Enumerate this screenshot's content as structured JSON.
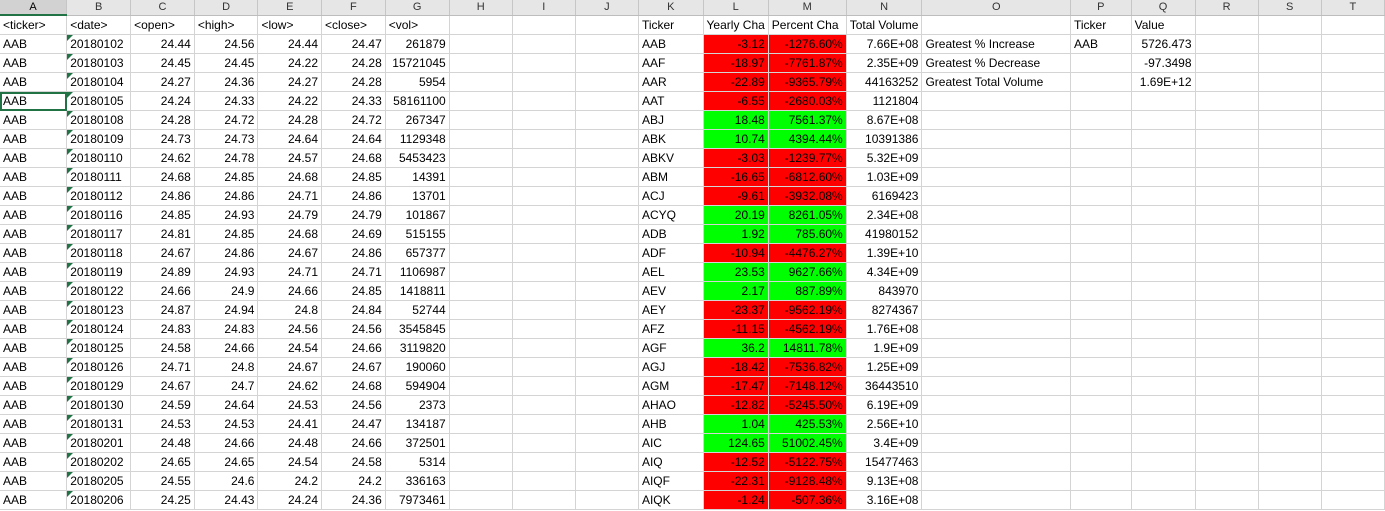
{
  "columns": [
    "A",
    "B",
    "C",
    "D",
    "E",
    "F",
    "G",
    "H",
    "I",
    "J",
    "K",
    "L",
    "M",
    "N",
    "O",
    "P",
    "Q",
    "R",
    "S",
    "T"
  ],
  "active_column": "A",
  "stock_header": [
    "<ticker>",
    "<date>",
    "<open>",
    "<high>",
    "<low>",
    "<close>",
    "<vol>"
  ],
  "stock_rows": [
    [
      "AAB",
      "20180102",
      "24.44",
      "24.56",
      "24.44",
      "24.47",
      "261879"
    ],
    [
      "AAB",
      "20180103",
      "24.45",
      "24.45",
      "24.22",
      "24.28",
      "15721045"
    ],
    [
      "AAB",
      "20180104",
      "24.27",
      "24.36",
      "24.27",
      "24.28",
      "5954"
    ],
    [
      "AAB",
      "20180105",
      "24.24",
      "24.33",
      "24.22",
      "24.33",
      "58161100"
    ],
    [
      "AAB",
      "20180108",
      "24.28",
      "24.72",
      "24.28",
      "24.72",
      "267347"
    ],
    [
      "AAB",
      "20180109",
      "24.73",
      "24.73",
      "24.64",
      "24.64",
      "1129348"
    ],
    [
      "AAB",
      "20180110",
      "24.62",
      "24.78",
      "24.57",
      "24.68",
      "5453423"
    ],
    [
      "AAB",
      "20180111",
      "24.68",
      "24.85",
      "24.68",
      "24.85",
      "14391"
    ],
    [
      "AAB",
      "20180112",
      "24.86",
      "24.86",
      "24.71",
      "24.86",
      "13701"
    ],
    [
      "AAB",
      "20180116",
      "24.85",
      "24.93",
      "24.79",
      "24.79",
      "101867"
    ],
    [
      "AAB",
      "20180117",
      "24.81",
      "24.85",
      "24.68",
      "24.69",
      "515155"
    ],
    [
      "AAB",
      "20180118",
      "24.67",
      "24.86",
      "24.67",
      "24.86",
      "657377"
    ],
    [
      "AAB",
      "20180119",
      "24.89",
      "24.93",
      "24.71",
      "24.71",
      "1106987"
    ],
    [
      "AAB",
      "20180122",
      "24.66",
      "24.9",
      "24.66",
      "24.85",
      "1418811"
    ],
    [
      "AAB",
      "20180123",
      "24.87",
      "24.94",
      "24.8",
      "24.84",
      "52744"
    ],
    [
      "AAB",
      "20180124",
      "24.83",
      "24.83",
      "24.56",
      "24.56",
      "3545845"
    ],
    [
      "AAB",
      "20180125",
      "24.58",
      "24.66",
      "24.54",
      "24.66",
      "3119820"
    ],
    [
      "AAB",
      "20180126",
      "24.71",
      "24.8",
      "24.67",
      "24.67",
      "190060"
    ],
    [
      "AAB",
      "20180129",
      "24.67",
      "24.7",
      "24.62",
      "24.68",
      "594904"
    ],
    [
      "AAB",
      "20180130",
      "24.59",
      "24.64",
      "24.53",
      "24.56",
      "2373"
    ],
    [
      "AAB",
      "20180131",
      "24.53",
      "24.53",
      "24.41",
      "24.47",
      "134187"
    ],
    [
      "AAB",
      "20180201",
      "24.48",
      "24.66",
      "24.48",
      "24.66",
      "372501"
    ],
    [
      "AAB",
      "20180202",
      "24.65",
      "24.65",
      "24.54",
      "24.58",
      "5314"
    ],
    [
      "AAB",
      "20180205",
      "24.55",
      "24.6",
      "24.2",
      "24.2",
      "336163"
    ],
    [
      "AAB",
      "20180206",
      "24.25",
      "24.43",
      "24.24",
      "24.36",
      "7973461"
    ]
  ],
  "summary_header": [
    "Ticker",
    "Yearly Cha",
    "Percent Cha",
    "Total Volume"
  ],
  "summary_rows": [
    {
      "ticker": "AAB",
      "change": "-3.12",
      "percent": "-1276.60%",
      "volume": "7.66E+08",
      "status": "red"
    },
    {
      "ticker": "AAF",
      "change": "-18.97",
      "percent": "-7761.87%",
      "volume": "2.35E+09",
      "status": "red"
    },
    {
      "ticker": "AAR",
      "change": "-22.89",
      "percent": "-9365.79%",
      "volume": "44163252",
      "status": "red"
    },
    {
      "ticker": "AAT",
      "change": "-6.55",
      "percent": "-2680.03%",
      "volume": "1121804",
      "status": "red"
    },
    {
      "ticker": "ABJ",
      "change": "18.48",
      "percent": "7561.37%",
      "volume": "8.67E+08",
      "status": "green"
    },
    {
      "ticker": "ABK",
      "change": "10.74",
      "percent": "4394.44%",
      "volume": "10391386",
      "status": "green"
    },
    {
      "ticker": "ABKV",
      "change": "-3.03",
      "percent": "-1239.77%",
      "volume": "5.32E+09",
      "status": "red"
    },
    {
      "ticker": "ABM",
      "change": "-16.65",
      "percent": "-6812.60%",
      "volume": "1.03E+09",
      "status": "red"
    },
    {
      "ticker": "ACJ",
      "change": "-9.61",
      "percent": "-3932.08%",
      "volume": "6169423",
      "status": "red"
    },
    {
      "ticker": "ACYQ",
      "change": "20.19",
      "percent": "8261.05%",
      "volume": "2.34E+08",
      "status": "green"
    },
    {
      "ticker": "ADB",
      "change": "1.92",
      "percent": "785.60%",
      "volume": "41980152",
      "status": "green"
    },
    {
      "ticker": "ADF",
      "change": "-10.94",
      "percent": "-4476.27%",
      "volume": "1.39E+10",
      "status": "red"
    },
    {
      "ticker": "AEL",
      "change": "23.53",
      "percent": "9627.66%",
      "volume": "4.34E+09",
      "status": "green"
    },
    {
      "ticker": "AEV",
      "change": "2.17",
      "percent": "887.89%",
      "volume": "843970",
      "status": "green"
    },
    {
      "ticker": "AEY",
      "change": "-23.37",
      "percent": "-9562.19%",
      "volume": "8274367",
      "status": "red"
    },
    {
      "ticker": "AFZ",
      "change": "-11.15",
      "percent": "-4562.19%",
      "volume": "1.76E+08",
      "status": "red"
    },
    {
      "ticker": "AGF",
      "change": "36.2",
      "percent": "14811.78%",
      "volume": "1.9E+09",
      "status": "green"
    },
    {
      "ticker": "AGJ",
      "change": "-18.42",
      "percent": "-7536.82%",
      "volume": "1.25E+09",
      "status": "red"
    },
    {
      "ticker": "AGM",
      "change": "-17.47",
      "percent": "-7148.12%",
      "volume": "36443510",
      "status": "red"
    },
    {
      "ticker": "AHAO",
      "change": "-12.82",
      "percent": "-5245.50%",
      "volume": "6.19E+09",
      "status": "red"
    },
    {
      "ticker": "AHB",
      "change": "1.04",
      "percent": "425.53%",
      "volume": "2.56E+10",
      "status": "green"
    },
    {
      "ticker": "AIC",
      "change": "124.65",
      "percent": "51002.45%",
      "volume": "3.4E+09",
      "status": "green"
    },
    {
      "ticker": "AIQ",
      "change": "-12.52",
      "percent": "-5122.75%",
      "volume": "15477463",
      "status": "red"
    },
    {
      "ticker": "AIQF",
      "change": "-22.31",
      "percent": "-9128.48%",
      "volume": "9.13E+08",
      "status": "red"
    },
    {
      "ticker": "AIQK",
      "change": "-1.24",
      "percent": "-507.36%",
      "volume": "3.16E+08",
      "status": "red"
    }
  ],
  "stats_header": {
    "ticker": "Ticker",
    "value": "Value"
  },
  "stats_rows": [
    {
      "label": "Greatest % Increase",
      "ticker": "AAB",
      "value": "5726.473"
    },
    {
      "label": "Greatest % Decrease",
      "ticker": "",
      "value": "-97.3498"
    },
    {
      "label": "Greatest Total Volume",
      "ticker": "",
      "value": "1.69E+12"
    }
  ],
  "colors": {
    "red": "#ff0000",
    "green": "#00ff00",
    "accent": "#217346"
  }
}
